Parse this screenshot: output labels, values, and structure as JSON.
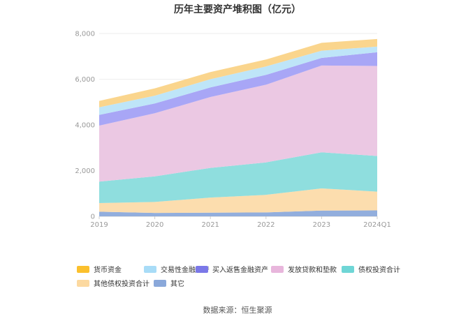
{
  "chart_data": {
    "type": "area",
    "stacked": true,
    "title": "历年主要资产堆积图（亿元）",
    "x": [
      "2019",
      "2020",
      "2021",
      "2022",
      "2023",
      "2024Q1"
    ],
    "ylim": [
      0,
      8000
    ],
    "yticks": [
      "0",
      "2,000",
      "4,000",
      "6,000",
      "8,000"
    ],
    "grid": true,
    "legend_position": "bottom",
    "series": [
      {
        "name": "其它",
        "color": "#92AEDD",
        "values": [
          200,
          150,
          160,
          170,
          250,
          260
        ]
      },
      {
        "name": "其他债权投资合计",
        "color": "#FCDDAE",
        "values": [
          380,
          480,
          660,
          770,
          970,
          820
        ]
      },
      {
        "name": "债权投资合计",
        "color": "#8FDEDE",
        "values": [
          940,
          1120,
          1300,
          1420,
          1580,
          1560
        ]
      },
      {
        "name": "发放贷款和垫款",
        "color": "#EBC8E3",
        "values": [
          2450,
          2760,
          3100,
          3400,
          3800,
          3940
        ]
      },
      {
        "name": "买入返售金融资产",
        "color": "#A8A6F6",
        "values": [
          470,
          430,
          420,
          430,
          330,
          600
        ]
      },
      {
        "name": "交易性金融资产",
        "color": "#BEE5F8",
        "values": [
          330,
          340,
          360,
          370,
          320,
          250
        ]
      },
      {
        "name": "货币资金",
        "color": "#FAD58D",
        "values": [
          280,
          320,
          310,
          300,
          340,
          330
        ]
      }
    ]
  },
  "legend_order": [
    {
      "name": "货币资金",
      "color": "#FBC02D"
    },
    {
      "name": "交易性金融资产",
      "color": "#A8DCF7"
    },
    {
      "name": "买入返售金融资产",
      "color": "#7B78E8"
    },
    {
      "name": "发放贷款和垫款",
      "color": "#E8B6DC"
    },
    {
      "name": "债权投资合计",
      "color": "#6FD6D6"
    },
    {
      "name": "其他债权投资合计",
      "color": "#FCD9A0"
    },
    {
      "name": "其它",
      "color": "#8AA8DA"
    }
  ],
  "source": "数据来源：恒生聚源"
}
